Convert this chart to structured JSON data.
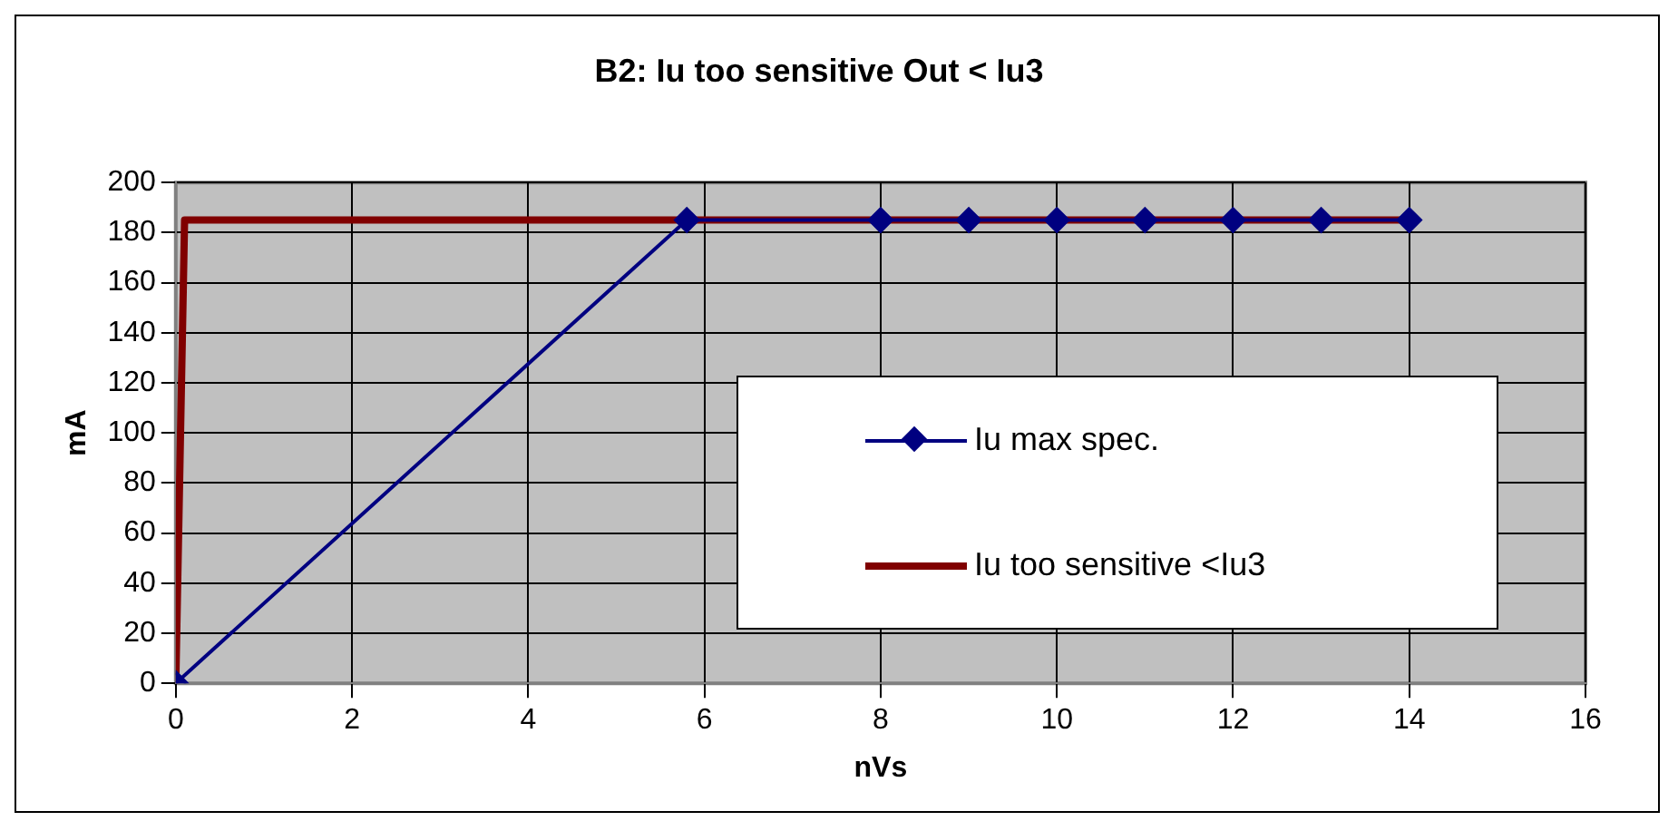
{
  "chart_data": {
    "type": "line",
    "title": "B2: Iu too sensitive Out < Iu3",
    "xlabel": "nVs",
    "ylabel": "mA",
    "xlim": [
      0,
      16
    ],
    "xticks": [
      0,
      2,
      4,
      6,
      8,
      10,
      12,
      14,
      16
    ],
    "ylim": [
      0,
      200
    ],
    "yticks": [
      0,
      20,
      40,
      60,
      80,
      100,
      120,
      140,
      160,
      180,
      200
    ],
    "grid": true,
    "legend": "bottom right",
    "series": [
      {
        "name": "Iu max spec.",
        "color": "#000080",
        "marker": "diamond",
        "x": [
          0,
          5.8,
          8,
          9,
          10,
          11,
          12,
          13,
          14
        ],
        "values": [
          0,
          185,
          185,
          185,
          185,
          185,
          185,
          185,
          185
        ]
      },
      {
        "name": "Iu too sensitive <Iu3",
        "color": "#800000",
        "marker": "none",
        "x": [
          0,
          0.1,
          14
        ],
        "values": [
          0,
          185,
          185
        ]
      }
    ]
  }
}
